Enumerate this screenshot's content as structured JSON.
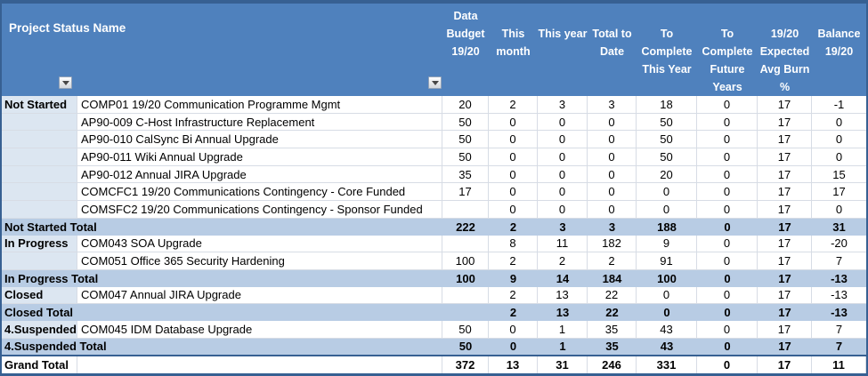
{
  "colors": {
    "header_bg": "#4f81bd",
    "header_text": "#ffffff",
    "total_row_bg": "#b8cce4",
    "status_col_bg": "#dce6f1",
    "outer_border": "#376092",
    "gridline": "#d7dce5",
    "body_text": "#000000",
    "grand_bg": "#ffffff"
  },
  "header": {
    "corner_label": "Project Status Name",
    "value_columns": [
      {
        "id": "budget-19-20",
        "lines": [
          "Data",
          "Budget",
          "19/20"
        ]
      },
      {
        "id": "this-month",
        "lines": [
          "This",
          "month"
        ]
      },
      {
        "id": "this-year",
        "lines": [
          "This year"
        ]
      },
      {
        "id": "total-to-date",
        "lines": [
          "Total to",
          "Date"
        ]
      },
      {
        "id": "to-complete-this-year",
        "lines": [
          "To",
          "Complete",
          "This Year"
        ]
      },
      {
        "id": "to-complete-future-years",
        "lines": [
          "To",
          "Complete",
          "Future",
          "Years"
        ]
      },
      {
        "id": "expected-avg-burn-pct",
        "lines": [
          "19/20",
          "Expected",
          "Avg Burn",
          "%"
        ]
      },
      {
        "id": "balance-19-20",
        "lines": [
          "Balance",
          "19/20"
        ]
      }
    ],
    "filters": [
      {
        "id": "status-filter",
        "icon": "chevron-down-icon"
      },
      {
        "id": "name-filter",
        "icon": "chevron-down-icon"
      }
    ]
  },
  "rows": [
    {
      "type": "data",
      "status": "Not Started",
      "name": "COMP01 19/20 Communication Programme Mgmt",
      "values": [
        "20",
        "2",
        "3",
        "3",
        "18",
        "0",
        "17",
        "-1"
      ]
    },
    {
      "type": "data",
      "status": "",
      "name": "AP90-009 C-Host Infrastructure Replacement",
      "values": [
        "50",
        "0",
        "0",
        "0",
        "50",
        "0",
        "17",
        "0"
      ]
    },
    {
      "type": "data",
      "status": "",
      "name": "AP90-010 CalSync Bi Annual Upgrade",
      "values": [
        "50",
        "0",
        "0",
        "0",
        "50",
        "0",
        "17",
        "0"
      ]
    },
    {
      "type": "data",
      "status": "",
      "name": "AP90-011 Wiki Annual Upgrade",
      "values": [
        "50",
        "0",
        "0",
        "0",
        "50",
        "0",
        "17",
        "0"
      ]
    },
    {
      "type": "data",
      "status": "",
      "name": "AP90-012 Annual JIRA Upgrade",
      "values": [
        "35",
        "0",
        "0",
        "0",
        "20",
        "0",
        "17",
        "15"
      ]
    },
    {
      "type": "data",
      "status": "",
      "name": "COMCFC1 19/20 Communications Contingency - Core Funded",
      "values": [
        "17",
        "0",
        "0",
        "0",
        "0",
        "0",
        "17",
        "17"
      ]
    },
    {
      "type": "data",
      "status": "",
      "name": "COMSFC2 19/20 Communications Contingency - Sponsor Funded",
      "values": [
        "",
        "0",
        "0",
        "0",
        "0",
        "0",
        "17",
        "0"
      ]
    },
    {
      "type": "total",
      "status": "Not Started Total",
      "name": "",
      "values": [
        "222",
        "2",
        "3",
        "3",
        "188",
        "0",
        "17",
        "31"
      ]
    },
    {
      "type": "data",
      "status": "In Progress",
      "name": "COM043 SOA Upgrade",
      "values": [
        "",
        "8",
        "11",
        "182",
        "9",
        "0",
        "17",
        "-20"
      ]
    },
    {
      "type": "data",
      "status": "",
      "name": "COM051 Office 365 Security Hardening",
      "values": [
        "100",
        "2",
        "2",
        "2",
        "91",
        "0",
        "17",
        "7"
      ]
    },
    {
      "type": "total",
      "status": "In Progress Total",
      "name": "",
      "values": [
        "100",
        "9",
        "14",
        "184",
        "100",
        "0",
        "17",
        "-13"
      ]
    },
    {
      "type": "data",
      "status": "Closed",
      "name": "COM047 Annual JIRA Upgrade",
      "values": [
        "",
        "2",
        "13",
        "22",
        "0",
        "0",
        "17",
        "-13"
      ]
    },
    {
      "type": "total",
      "status": "Closed Total",
      "name": "",
      "values": [
        "",
        "2",
        "13",
        "22",
        "0",
        "0",
        "17",
        "-13"
      ]
    },
    {
      "type": "data",
      "status": "4.Suspended",
      "name": "COM045 IDM Database Upgrade",
      "values": [
        "50",
        "0",
        "1",
        "35",
        "43",
        "0",
        "17",
        "7"
      ]
    },
    {
      "type": "total",
      "status": "4.Suspended Total",
      "name": "",
      "values": [
        "50",
        "0",
        "1",
        "35",
        "43",
        "0",
        "17",
        "7"
      ]
    },
    {
      "type": "grand",
      "status": "Grand Total",
      "name": "",
      "values": [
        "372",
        "13",
        "31",
        "246",
        "331",
        "0",
        "17",
        "11"
      ]
    }
  ]
}
